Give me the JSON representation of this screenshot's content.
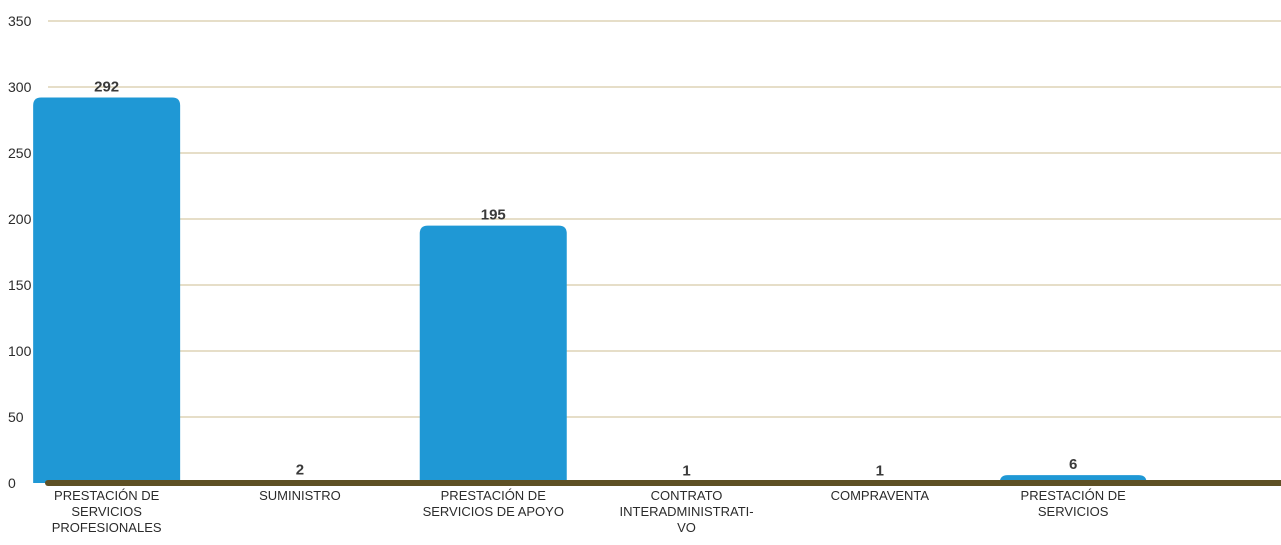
{
  "chart_data": {
    "type": "bar",
    "categories": [
      [
        "PRESTACIÓN DE",
        "SERVICIOS",
        "PROFESIONALES"
      ],
      [
        "SUMINISTRO"
      ],
      [
        "PRESTACIÓN DE",
        "SERVICIOS DE APOYO"
      ],
      [
        "CONTRATO",
        "INTERADMINISTRATI-",
        "VO"
      ],
      [
        "COMPRAVENTA"
      ],
      [
        "PRESTACIÓN DE",
        "SERVICIOS"
      ]
    ],
    "values": [
      292,
      2,
      195,
      1,
      1,
      6
    ],
    "data_labels": [
      "292",
      "2",
      "195",
      "1",
      "1",
      "6"
    ],
    "yticks": [
      "0",
      "50",
      "100",
      "150",
      "200",
      "250",
      "300",
      "350"
    ],
    "ylim": [
      0,
      350
    ],
    "grid": true,
    "title": "",
    "xlabel": "",
    "ylabel": "",
    "colors": {
      "bar": "#1f98d5",
      "grid": "#d8cba8",
      "baseline": "#5e5024"
    }
  }
}
